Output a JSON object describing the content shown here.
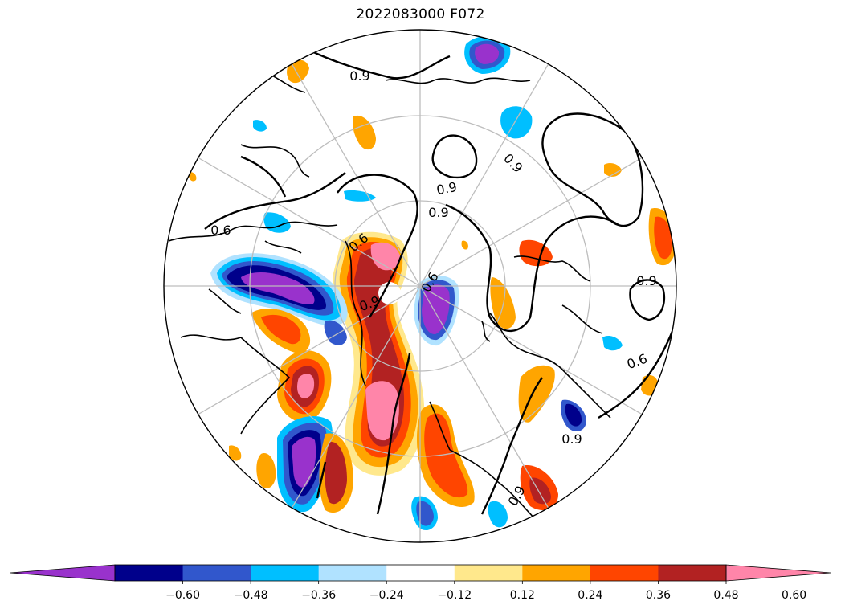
{
  "title": "2022083000 F072",
  "map": {
    "projection": "north-polar-stereographic",
    "graticule": "on",
    "contour_label": "0.9",
    "contour_label_alt": "0.6"
  },
  "colorbar": {
    "extend": "both",
    "levels": [
      {
        "value": -0.72,
        "color": "#9932cc"
      },
      {
        "value": -0.6,
        "color": "#00008b"
      },
      {
        "value": -0.48,
        "color": "#3157cc"
      },
      {
        "value": -0.36,
        "color": "#00bfff"
      },
      {
        "value": -0.24,
        "color": "#b0e2ff"
      },
      {
        "value": -0.12,
        "color": "#ffffff"
      },
      {
        "value": 0.12,
        "color": "#ffe88c"
      },
      {
        "value": 0.24,
        "color": "#ffa500"
      },
      {
        "value": 0.36,
        "color": "#ff4500"
      },
      {
        "value": 0.48,
        "color": "#b22222"
      },
      {
        "value": 0.6,
        "color": "#ff85a9"
      }
    ],
    "tick_labels": [
      "−0.60",
      "−0.48",
      "−0.36",
      "−0.24",
      "−0.12",
      "0.12",
      "0.24",
      "0.36",
      "0.48",
      "0.60"
    ]
  },
  "colors": {
    "neg_extreme": "#9932cc",
    "neg_strong": "#00008b",
    "neg_mid": "#3157cc",
    "neg_light": "#00bfff",
    "neg_faint": "#b0e2ff",
    "pos_faint": "#ffe88c",
    "pos_light": "#ffa500",
    "pos_mid": "#ff4500",
    "pos_strong": "#b22222",
    "pos_extreme": "#ff85a9"
  }
}
